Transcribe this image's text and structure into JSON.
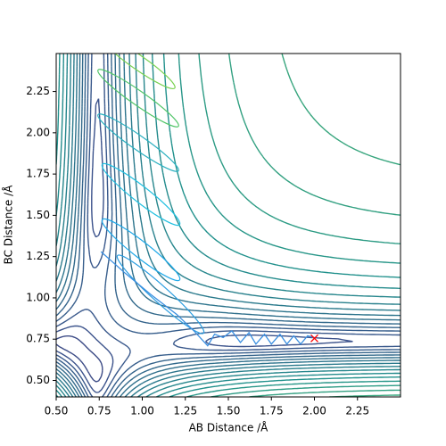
{
  "chart_data": {
    "type": "contour",
    "xlabel": "AB Distance /Å",
    "ylabel": "BC Distance /Å",
    "xlim": [
      0.5,
      2.5
    ],
    "ylim": [
      0.4,
      2.48
    ],
    "xticks": [
      {
        "value": 0.5,
        "label": "0.50"
      },
      {
        "value": 0.75,
        "label": "0.75"
      },
      {
        "value": 1.0,
        "label": "1.00"
      },
      {
        "value": 1.25,
        "label": "1.25"
      },
      {
        "value": 1.5,
        "label": "1.50"
      },
      {
        "value": 1.75,
        "label": "1.75"
      },
      {
        "value": 2.0,
        "label": "2.00"
      },
      {
        "value": 2.25,
        "label": "2.25"
      }
    ],
    "yticks": [
      {
        "value": 0.5,
        "label": "0.50"
      },
      {
        "value": 0.75,
        "label": "0.75"
      },
      {
        "value": 1.0,
        "label": "1.00"
      },
      {
        "value": 1.25,
        "label": "1.25"
      },
      {
        "value": 1.5,
        "label": "1.50"
      },
      {
        "value": 1.75,
        "label": "1.75"
      },
      {
        "value": 2.0,
        "label": "2.00"
      },
      {
        "value": 2.25,
        "label": "2.25"
      }
    ],
    "series": [
      {
        "color": "#3a8fe0",
        "x": [
          0.76,
          0.9,
          1.05,
          1.2,
          1.3,
          1.38,
          1.42,
          1.47,
          1.52,
          1.57,
          1.62,
          1.66,
          1.71,
          1.75,
          1.8,
          1.84,
          1.88,
          1.92,
          1.96,
          2.0
        ],
        "y": [
          1.28,
          1.15,
          1.02,
          0.9,
          0.8,
          0.71,
          0.78,
          0.76,
          0.8,
          0.73,
          0.79,
          0.72,
          0.78,
          0.72,
          0.78,
          0.72,
          0.77,
          0.72,
          0.77,
          0.76
        ]
      }
    ],
    "markers": [
      {
        "x": 2.0,
        "y": 0.755,
        "color": "#ff0000"
      }
    ]
  }
}
